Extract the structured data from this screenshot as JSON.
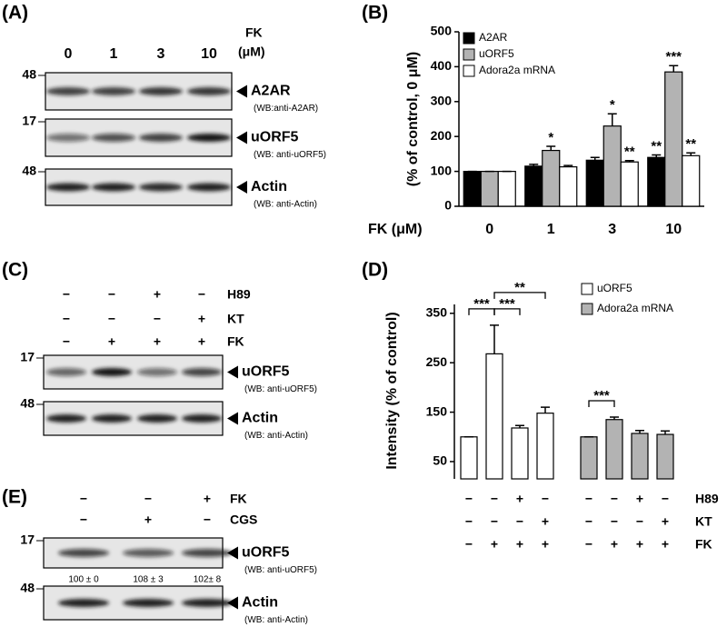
{
  "panels": {
    "A": {
      "label": "(A)",
      "treatment": "FK",
      "unit": "(μM)",
      "lanes": [
        "0",
        "1",
        "3",
        "10"
      ],
      "blots": [
        {
          "mw": "48",
          "target": "A2AR",
          "antibody": "(WB:anti-A2AR)"
        },
        {
          "mw": "17",
          "target": "uORF5",
          "antibody": "(WB: anti-uORF5)"
        },
        {
          "mw": "48",
          "target": "Actin",
          "antibody": "(WB: anti-Actin)"
        }
      ]
    },
    "B": {
      "label": "(B)"
    },
    "C": {
      "label": "(C)",
      "rows": [
        {
          "name": "H89",
          "signs": [
            "−",
            "−",
            "+",
            "−"
          ]
        },
        {
          "name": "KT",
          "signs": [
            "−",
            "−",
            "−",
            "+"
          ]
        },
        {
          "name": "FK",
          "signs": [
            "−",
            "+",
            "+",
            "+"
          ]
        }
      ],
      "blots": [
        {
          "mw": "17",
          "target": "uORF5",
          "antibody": "(WB: anti-uORF5)"
        },
        {
          "mw": "48",
          "target": "Actin",
          "antibody": "(WB: anti-Actin)"
        }
      ]
    },
    "D": {
      "label": "(D)"
    },
    "E": {
      "label": "(E)",
      "rows": [
        {
          "name": "FK",
          "signs": [
            "−",
            "−",
            "+"
          ]
        },
        {
          "name": "CGS",
          "signs": [
            "−",
            "+",
            "−"
          ]
        }
      ],
      "blots": [
        {
          "mw": "17",
          "target": "uORF5",
          "antibody": "(WB: anti-uORF5)"
        },
        {
          "mw": "48",
          "target": "Actin",
          "antibody": "(WB: anti-Actin)"
        }
      ],
      "quantification": [
        "100 ± 0",
        "108 ± 3",
        "102± 8"
      ]
    }
  },
  "chart_data": [
    {
      "type": "bar",
      "x_label": "FK (μM)",
      "y_label": "(% of control, 0 μM)",
      "categories": [
        "0",
        "1",
        "3",
        "10"
      ],
      "ylim": [
        0,
        500
      ],
      "yticks": [
        0,
        100,
        200,
        300,
        400,
        500
      ],
      "legend": "upper left",
      "series": [
        {
          "name": "A2AR",
          "color": "#000000",
          "values": [
            100,
            115,
            132,
            140
          ],
          "errors": [
            0,
            5,
            8,
            7
          ],
          "annotations": [
            null,
            null,
            null,
            "**"
          ]
        },
        {
          "name": "uORF5",
          "color": "#b3b3b3",
          "values": [
            100,
            160,
            230,
            385
          ],
          "errors": [
            0,
            12,
            35,
            18
          ],
          "annotations": [
            null,
            "*",
            "*",
            "***"
          ]
        },
        {
          "name": "Adora2a mRNA",
          "color": "#ffffff",
          "values": [
            100,
            113,
            127,
            145
          ],
          "errors": [
            0,
            4,
            4,
            8
          ],
          "annotations": [
            null,
            null,
            "**",
            "**"
          ]
        }
      ]
    },
    {
      "type": "grouped-bar",
      "y_label": "Intensity (% of control)",
      "ylim": [
        15,
        368
      ],
      "yticks": [
        50,
        150,
        250,
        350
      ],
      "legend": "upper right",
      "treatments": [
        {
          "name": "H89",
          "signs": [
            "−",
            "−",
            "+",
            "−"
          ]
        },
        {
          "name": "KT",
          "signs": [
            "−",
            "−",
            "−",
            "+"
          ]
        },
        {
          "name": "FK",
          "signs": [
            "−",
            "+",
            "+",
            "+"
          ]
        }
      ],
      "series": [
        {
          "name": "uORF5",
          "color": "#ffffff",
          "values": [
            100,
            268,
            118,
            148
          ],
          "errors": [
            0,
            58,
            5,
            12
          ]
        },
        {
          "name": "Adora2a mRNA",
          "color": "#b3b3b3",
          "values": [
            100,
            135,
            107,
            105
          ],
          "errors": [
            0,
            5,
            6,
            7
          ]
        }
      ],
      "comparisons": [
        {
          "series": 0,
          "from": 0,
          "to": 1,
          "label": "***"
        },
        {
          "series": 0,
          "from": 1,
          "to": 2,
          "label": "***"
        },
        {
          "series": 0,
          "from": 1,
          "to": 3,
          "label": "**"
        },
        {
          "series": 1,
          "from": 0,
          "to": 1,
          "label": "***"
        }
      ]
    }
  ]
}
